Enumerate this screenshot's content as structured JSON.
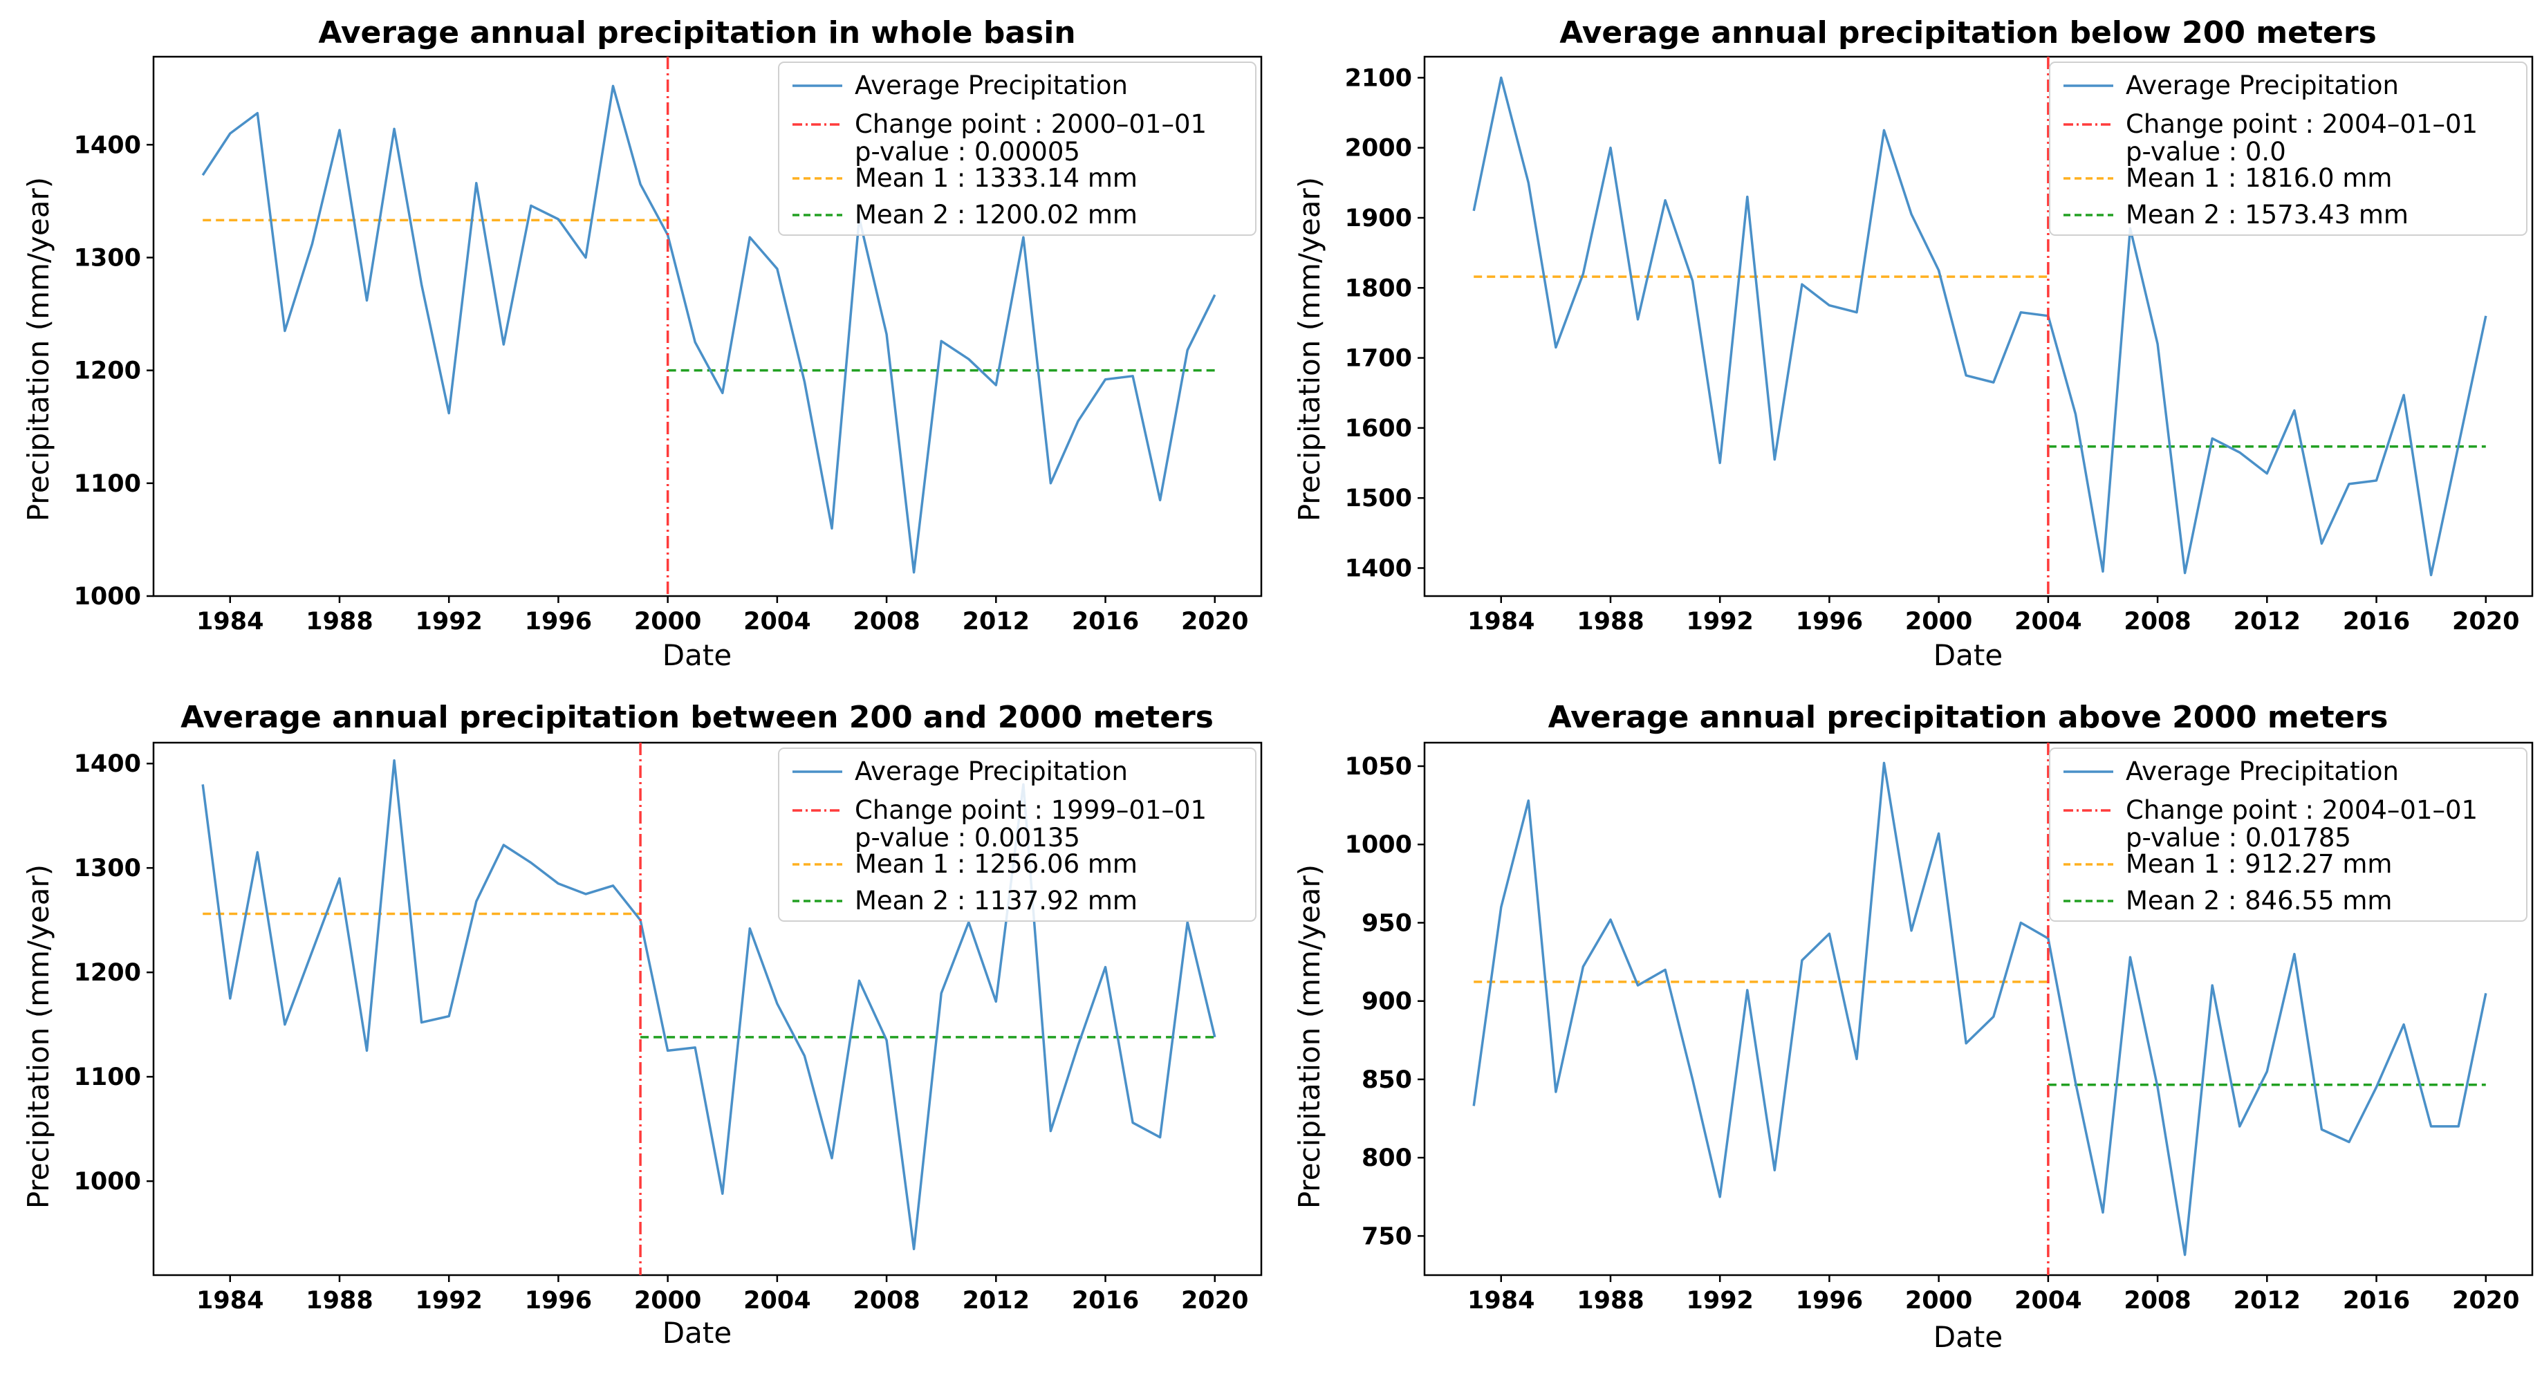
{
  "colors": {
    "series": "#4a90c8",
    "change": "#ff3b3b",
    "mean1": "#ffb020",
    "mean2": "#22a022"
  },
  "chart_data": [
    {
      "type": "line",
      "title": "Average annual precipitation in whole basin",
      "xlabel": "Date",
      "ylabel": "Precipitation (mm/year)",
      "xlim": [
        1981.2,
        2021.7
      ],
      "ylim": [
        1000,
        1478
      ],
      "xticks": [
        1984,
        1988,
        1992,
        1996,
        2000,
        2004,
        2008,
        2012,
        2016,
        2020
      ],
      "yticks": [
        1000,
        1100,
        1200,
        1300,
        1400
      ],
      "x": [
        1983,
        1984,
        1985,
        1986,
        1987,
        1988,
        1989,
        1990,
        1991,
        1992,
        1993,
        1994,
        1995,
        1996,
        1997,
        1998,
        1999,
        2000,
        2001,
        2002,
        2003,
        2004,
        2005,
        2006,
        2007,
        2008,
        2009,
        2010,
        2011,
        2012,
        2013,
        2014,
        2015,
        2016,
        2017,
        2018,
        2019,
        2020
      ],
      "y": [
        1373,
        1410,
        1428,
        1235,
        1312,
        1413,
        1262,
        1414,
        1276,
        1162,
        1366,
        1223,
        1346,
        1334,
        1300,
        1452,
        1365,
        1320,
        1225,
        1180,
        1318,
        1290,
        1190,
        1060,
        1335,
        1232,
        1021,
        1226,
        1210,
        1187,
        1318,
        1100,
        1155,
        1192,
        1195,
        1085,
        1218,
        1267
      ],
      "change_point_x": 2000,
      "mean1": {
        "value": 1333.14,
        "x_start": 1983,
        "x_end": 2000
      },
      "mean2": {
        "value": 1200.02,
        "x_start": 2000,
        "x_end": 2020
      },
      "legend": {
        "position": "top-right",
        "series_label": "Average Precipitation",
        "change_label": "Change point : 2000–01–01",
        "pvalue_label": " p-value : 0.00005",
        "mean1_label": "Mean 1 : 1333.14 mm",
        "mean2_label": "Mean 2 : 1200.02 mm"
      }
    },
    {
      "type": "line",
      "title": "Average annual precipitation below 200 meters",
      "xlabel": "Date",
      "ylabel": "Precipitation (mm/year)",
      "xlim": [
        1981.2,
        2021.7
      ],
      "ylim": [
        1360,
        2130
      ],
      "xticks": [
        1984,
        1988,
        1992,
        1996,
        2000,
        2004,
        2008,
        2012,
        2016,
        2020
      ],
      "yticks": [
        1400,
        1500,
        1600,
        1700,
        1800,
        1900,
        2000,
        2100
      ],
      "x": [
        1983,
        1984,
        1985,
        1986,
        1987,
        1988,
        1989,
        1990,
        1991,
        1992,
        1993,
        1994,
        1995,
        1996,
        1997,
        1998,
        1999,
        2000,
        2001,
        2002,
        2003,
        2004,
        2005,
        2006,
        2007,
        2008,
        2009,
        2010,
        2011,
        2012,
        2013,
        2014,
        2015,
        2016,
        2017,
        2018,
        2019,
        2020
      ],
      "y": [
        1910,
        2100,
        1950,
        1715,
        1820,
        2000,
        1755,
        1925,
        1810,
        1550,
        1930,
        1555,
        1805,
        1775,
        1765,
        2025,
        1905,
        1825,
        1675,
        1665,
        1765,
        1760,
        1620,
        1395,
        1885,
        1720,
        1393,
        1585,
        1565,
        1535,
        1625,
        1435,
        1520,
        1525,
        1647,
        1390,
        1575,
        1760
      ],
      "change_point_x": 2004,
      "mean1": {
        "value": 1816.0,
        "x_start": 1983,
        "x_end": 2004
      },
      "mean2": {
        "value": 1573.43,
        "x_start": 2004,
        "x_end": 2020
      },
      "legend": {
        "position": "top-right",
        "series_label": "Average Precipitation",
        "change_label": "Change point : 2004–01–01",
        "pvalue_label": " p-value : 0.0",
        "mean1_label": "Mean 1 : 1816.0 mm",
        "mean2_label": "Mean 2 : 1573.43 mm"
      }
    },
    {
      "type": "line",
      "title": "Average annual precipitation between 200 and 2000 meters",
      "xlabel": "Date",
      "ylabel": "Precipitation (mm/year)",
      "xlim": [
        1981.2,
        2021.7
      ],
      "ylim": [
        910,
        1420
      ],
      "xticks": [
        1984,
        1988,
        1992,
        1996,
        2000,
        2004,
        2008,
        2012,
        2016,
        2020
      ],
      "yticks": [
        1000,
        1100,
        1200,
        1300,
        1400
      ],
      "x": [
        1983,
        1984,
        1985,
        1986,
        1987,
        1988,
        1989,
        1990,
        1991,
        1992,
        1993,
        1994,
        1995,
        1996,
        1997,
        1998,
        1999,
        2000,
        2001,
        2002,
        2003,
        2004,
        2005,
        2006,
        2007,
        2008,
        2009,
        2010,
        2011,
        2012,
        2013,
        2014,
        2015,
        2016,
        2017,
        2018,
        2019,
        2020
      ],
      "y": [
        1380,
        1175,
        1315,
        1150,
        1220,
        1290,
        1125,
        1403,
        1152,
        1158,
        1268,
        1322,
        1305,
        1285,
        1275,
        1283,
        1250,
        1125,
        1128,
        988,
        1242,
        1170,
        1120,
        1022,
        1192,
        1135,
        935,
        1180,
        1248,
        1172,
        1380,
        1048,
        1130,
        1205,
        1056,
        1042,
        1248,
        1138
      ],
      "change_point_x": 1999,
      "mean1": {
        "value": 1256.06,
        "x_start": 1983,
        "x_end": 1999
      },
      "mean2": {
        "value": 1137.92,
        "x_start": 1999,
        "x_end": 2020
      },
      "legend": {
        "position": "top-right",
        "series_label": "Average Precipitation",
        "change_label": "Change point : 1999–01–01",
        "pvalue_label": " p-value : 0.00135",
        "mean1_label": "Mean 1 : 1256.06 mm",
        "mean2_label": "Mean 2 : 1137.92 mm"
      }
    },
    {
      "type": "line",
      "title": "Average annual precipitation above 2000 meters",
      "xlabel": "Date",
      "ylabel": "Precipitation (mm/year)",
      "xlim": [
        1981.2,
        2021.7
      ],
      "ylim": [
        725,
        1065
      ],
      "xticks": [
        1984,
        1988,
        1992,
        1996,
        2000,
        2004,
        2008,
        2012,
        2016,
        2020
      ],
      "yticks": [
        750,
        800,
        850,
        900,
        950,
        1000,
        1050
      ],
      "x": [
        1983,
        1984,
        1985,
        1986,
        1987,
        1988,
        1989,
        1990,
        1991,
        1992,
        1993,
        1994,
        1995,
        1996,
        1997,
        1998,
        1999,
        2000,
        2001,
        2002,
        2003,
        2004,
        2005,
        2006,
        2007,
        2008,
        2009,
        2010,
        2011,
        2012,
        2013,
        2014,
        2015,
        2016,
        2017,
        2018,
        2019,
        2020
      ],
      "y": [
        833,
        960,
        1028,
        842,
        922,
        952,
        910,
        920,
        850,
        775,
        907,
        792,
        926,
        943,
        863,
        1052,
        945,
        1007,
        873,
        890,
        950,
        940,
        848,
        765,
        928,
        845,
        738,
        910,
        820,
        855,
        930,
        818,
        810,
        845,
        885,
        820,
        820,
        905
      ],
      "change_point_x": 2004,
      "mean1": {
        "value": 912.27,
        "x_start": 1983,
        "x_end": 2004
      },
      "mean2": {
        "value": 846.55,
        "x_start": 2004,
        "x_end": 2020
      },
      "legend": {
        "position": "top-right",
        "series_label": "Average Precipitation",
        "change_label": "Change point : 2004–01–01",
        "pvalue_label": " p-value : 0.01785",
        "mean1_label": "Mean 1 : 912.27 mm",
        "mean2_label": "Mean 2 : 846.55 mm"
      }
    }
  ]
}
